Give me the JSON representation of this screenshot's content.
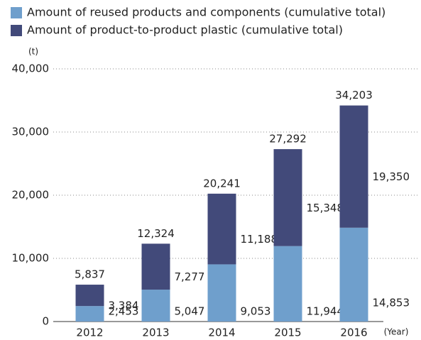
{
  "chart_data": {
    "type": "stacked_bar",
    "y_axis_label": "(t)",
    "x_axis_label": "(Year)",
    "categories": [
      "2012",
      "2013",
      "2014",
      "2015",
      "2016"
    ],
    "series": [
      {
        "name": "Amount of reused products and components (cumulative total)",
        "color": "#6f9fcc",
        "values": [
          2453,
          5047,
          9053,
          11944,
          14853
        ],
        "value_labels": [
          "2,453",
          "5,047",
          "9,053",
          "11,944",
          "14,853"
        ]
      },
      {
        "name": "Amount of product-to-product plastic (cumulative total)",
        "color": "#424a7a",
        "values": [
          3384,
          7277,
          11188,
          15348,
          19350
        ],
        "value_labels": [
          "3,384",
          "7,277",
          "11,188",
          "15,348",
          "19,350"
        ]
      }
    ],
    "totals": [
      5837,
      12324,
      20241,
      27292,
      34203
    ],
    "totals_labels": [
      "5,837",
      "12,324",
      "20,241",
      "27,292",
      "34,203"
    ],
    "ylim": [
      0,
      40000
    ],
    "yticks": [
      0,
      {
        "value": 10000,
        "label": "10,000"
      },
      {
        "value": 20000,
        "label": "20,000"
      },
      {
        "value": 30000,
        "label": "30,000"
      },
      {
        "value": 40000,
        "label": "40,000"
      }
    ],
    "grid": true
  }
}
